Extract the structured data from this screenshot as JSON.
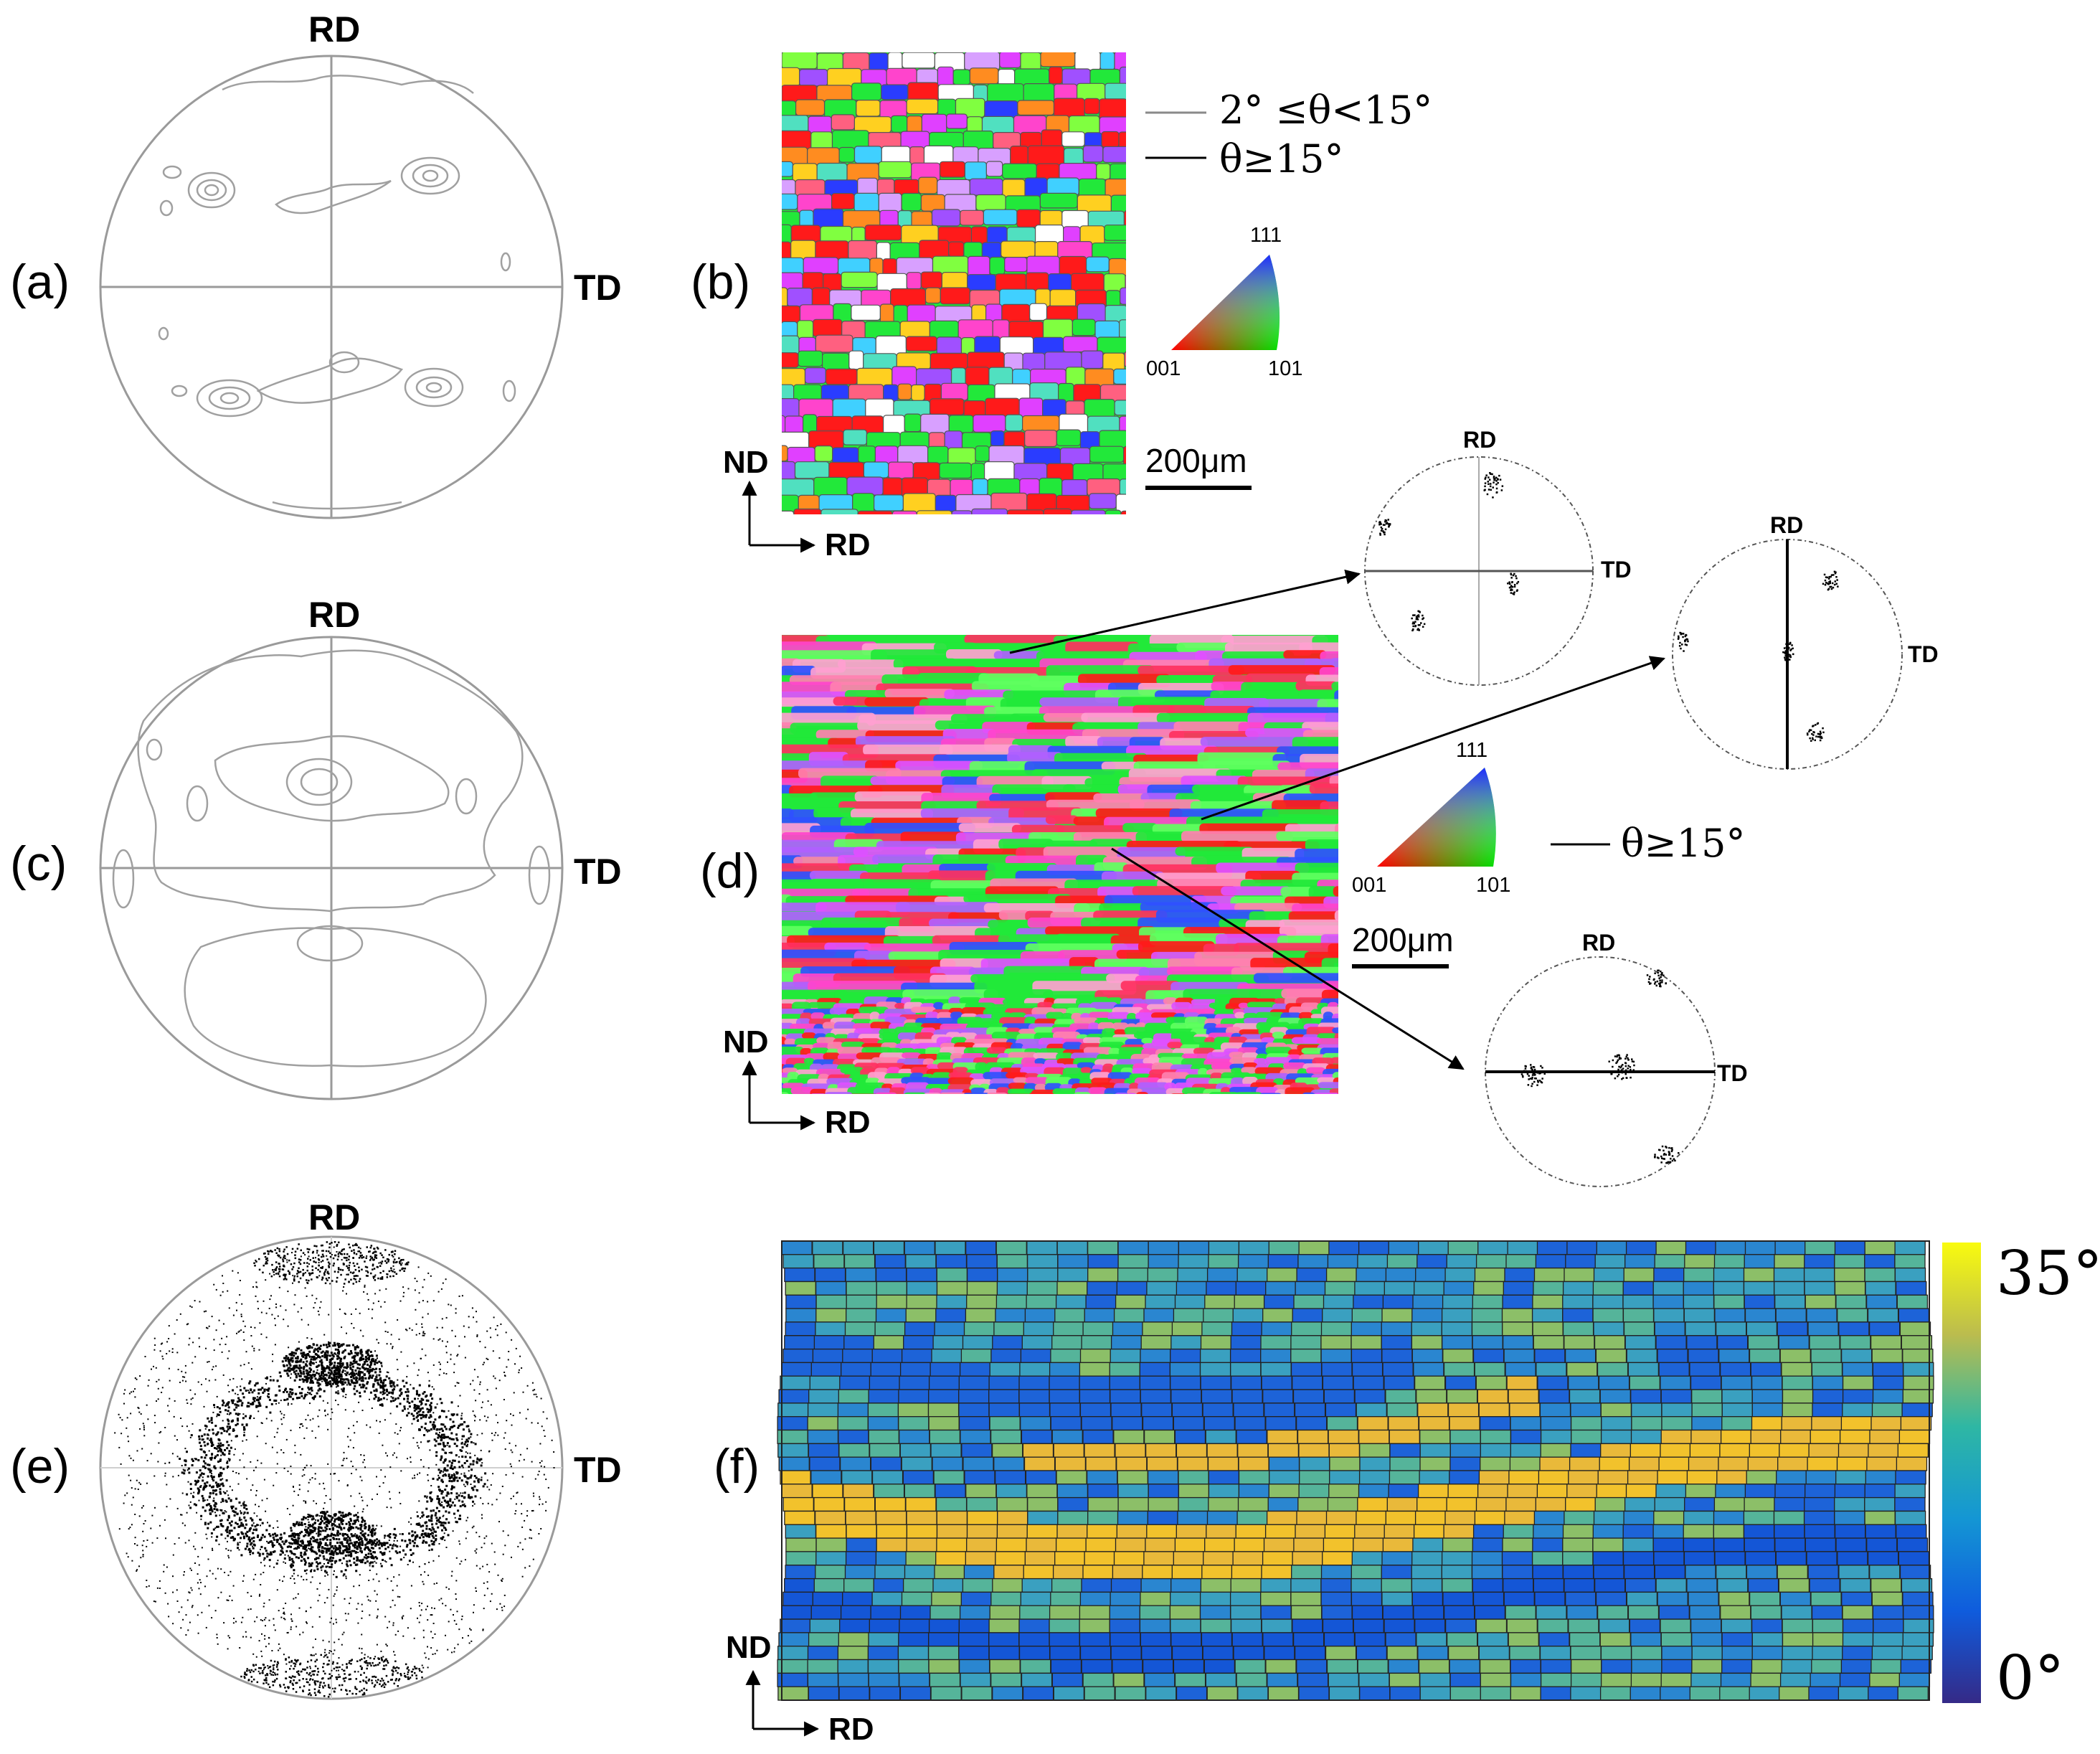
{
  "panels": {
    "a": {
      "label": "(a)",
      "rd": "RD",
      "td": "TD"
    },
    "b": {
      "label": "(b)",
      "legend_low": "2° ≤θ<15°",
      "legend_high": "θ≥15°",
      "ipf_111": "111",
      "ipf_001": "001",
      "ipf_101": "101",
      "scale_bar": "200μm",
      "nd": "ND",
      "rd": "RD"
    },
    "c": {
      "label": "(c)",
      "rd": "RD",
      "td": "TD"
    },
    "d": {
      "label": "(d)",
      "legend_high": "θ≥15°",
      "ipf_111": "111",
      "ipf_001": "001",
      "ipf_101": "101",
      "scale_bar": "200μm",
      "nd": "ND",
      "rd": "RD",
      "pf1_rd": "RD",
      "pf1_td": "TD",
      "pf2_rd": "RD",
      "pf2_td": "TD",
      "pf3_rd": "RD",
      "pf3_td": "TD"
    },
    "e": {
      "label": "(e)",
      "rd": "RD",
      "td": "TD"
    },
    "f": {
      "label": "(f)",
      "colorbar_max": "35°",
      "colorbar_min": "0°",
      "nd": "ND",
      "rd": "RD"
    }
  },
  "colors": {
    "viridis_low": "#352a87",
    "viridis_mid": "#14b2b8",
    "viridis_high": "#f9fb0e",
    "ipf_red": "#ff1a1a",
    "ipf_green": "#22e83a",
    "ipf_blue": "#2a3cff"
  }
}
